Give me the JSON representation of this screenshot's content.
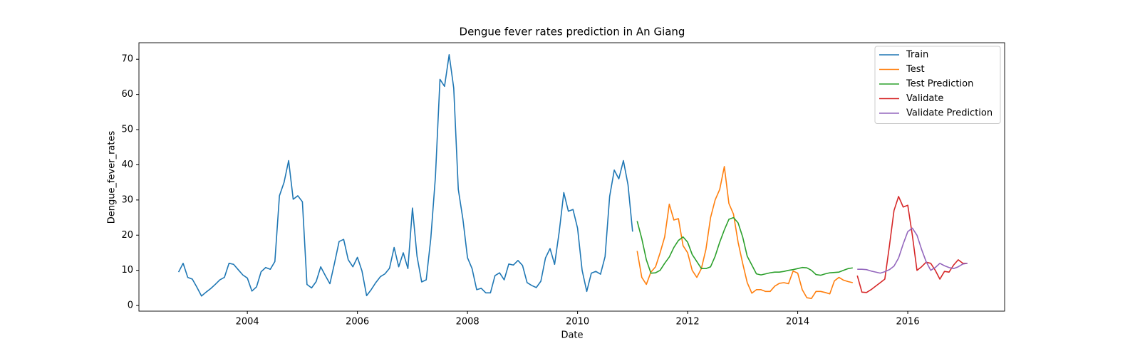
{
  "chart_data": {
    "type": "line",
    "title": "Dengue fever rates prediction in An Giang",
    "x_label": "Date",
    "y_label": "Dengue_fever_rates",
    "xlim": [
      2002.03,
      2017.76
    ],
    "xticks": [
      2004,
      2006,
      2008,
      2010,
      2012,
      2014,
      2016
    ],
    "ylim": [
      -1.6,
      74.7
    ],
    "yticks": [
      0,
      10,
      20,
      30,
      40,
      50,
      60,
      70
    ],
    "legend": "upper right",
    "series": [
      {
        "name": "Train",
        "color": "#1f77b4",
        "x": [
          2002.75,
          2002.833,
          2002.917,
          2003,
          2003.083,
          2003.167,
          2003.25,
          2003.333,
          2003.417,
          2003.5,
          2003.583,
          2003.667,
          2003.75,
          2003.833,
          2003.917,
          2004,
          2004.083,
          2004.167,
          2004.25,
          2004.333,
          2004.417,
          2004.5,
          2004.583,
          2004.667,
          2004.75,
          2004.833,
          2004.917,
          2005,
          2005.083,
          2005.167,
          2005.25,
          2005.333,
          2005.417,
          2005.5,
          2005.583,
          2005.667,
          2005.75,
          2005.833,
          2005.917,
          2006,
          2006.083,
          2006.167,
          2006.25,
          2006.333,
          2006.417,
          2006.5,
          2006.583,
          2006.667,
          2006.75,
          2006.833,
          2006.917,
          2007,
          2007.083,
          2007.167,
          2007.25,
          2007.333,
          2007.417,
          2007.5,
          2007.583,
          2007.667,
          2007.75,
          2007.833,
          2007.917,
          2008,
          2008.083,
          2008.167,
          2008.25,
          2008.333,
          2008.417,
          2008.5,
          2008.583,
          2008.667,
          2008.75,
          2008.833,
          2008.917,
          2009,
          2009.083,
          2009.167,
          2009.25,
          2009.333,
          2009.417,
          2009.5,
          2009.583,
          2009.667,
          2009.75,
          2009.833,
          2009.917,
          2010,
          2010.083,
          2010.167,
          2010.25,
          2010.333,
          2010.417,
          2010.5,
          2010.583,
          2010.667,
          2010.75,
          2010.833,
          2010.917,
          2011
        ],
        "values": [
          9.5,
          12,
          8,
          7.5,
          5.2,
          2.7,
          3.8,
          4.8,
          6,
          7.3,
          8,
          12,
          11.7,
          10.2,
          8.7,
          7.8,
          4.1,
          5.3,
          9.6,
          10.8,
          10.3,
          12.5,
          31.2,
          35,
          41.2,
          30.2,
          31.2,
          29.5,
          6,
          5,
          6.8,
          11,
          8.5,
          6.2,
          12,
          18.2,
          18.8,
          13,
          11,
          13.7,
          9.8,
          2.8,
          4.5,
          6.5,
          8.2,
          9,
          10.6,
          16.5,
          11,
          15,
          10.5,
          27.7,
          14,
          6.7,
          7.3,
          19,
          36.5,
          64.3,
          62.3,
          71.3,
          61.8,
          33,
          24.5,
          13.6,
          10.5,
          4.5,
          4.9,
          3.6,
          3.6,
          8.5,
          9.3,
          7.3,
          11.8,
          11.5,
          12.8,
          11.4,
          6.5,
          5.7,
          5.1,
          6.9,
          13.5,
          16.2,
          11.7,
          21,
          32.1,
          26.8,
          27.3,
          22,
          10,
          4,
          9.2,
          9.7,
          8.9,
          13.9,
          31,
          38.5,
          36,
          41.2,
          34.3,
          21
        ]
      },
      {
        "name": "Test",
        "color": "#ff7f0e",
        "x": [
          2011.083,
          2011.167,
          2011.25,
          2011.333,
          2011.417,
          2011.5,
          2011.583,
          2011.667,
          2011.75,
          2011.833,
          2011.917,
          2012,
          2012.083,
          2012.167,
          2012.25,
          2012.333,
          2012.417,
          2012.5,
          2012.583,
          2012.667,
          2012.75,
          2012.833,
          2012.917,
          2013,
          2013.083,
          2013.167,
          2013.25,
          2013.333,
          2013.417,
          2013.5,
          2013.583,
          2013.667,
          2013.75,
          2013.833,
          2013.917,
          2014,
          2014.083,
          2014.167,
          2014.25,
          2014.333,
          2014.417,
          2014.5,
          2014.583,
          2014.667,
          2014.75,
          2014.833,
          2014.917,
          2015
        ],
        "values": [
          15.5,
          8,
          6,
          9.5,
          11,
          15,
          19.5,
          28.8,
          24.3,
          24.7,
          17,
          15,
          10,
          8,
          10.5,
          16,
          25,
          30,
          33,
          39.5,
          29,
          26,
          18,
          12,
          6.5,
          3.5,
          4.5,
          4.5,
          4,
          4,
          5.5,
          6.3,
          6.5,
          6.2,
          9.8,
          9.2,
          4.5,
          2.2,
          2,
          4,
          4,
          3.7,
          3.3,
          7,
          8,
          7.2,
          6.8,
          6.5
        ]
      },
      {
        "name": "Test Prediction",
        "color": "#2ca02c",
        "x": [
          2011.083,
          2011.167,
          2011.25,
          2011.333,
          2011.417,
          2011.5,
          2011.583,
          2011.667,
          2011.75,
          2011.833,
          2011.917,
          2012,
          2012.083,
          2012.167,
          2012.25,
          2012.333,
          2012.417,
          2012.5,
          2012.583,
          2012.667,
          2012.75,
          2012.833,
          2012.917,
          2013,
          2013.083,
          2013.167,
          2013.25,
          2013.333,
          2013.417,
          2013.5,
          2013.583,
          2013.667,
          2013.75,
          2013.833,
          2013.917,
          2014,
          2014.083,
          2014.167,
          2014.25,
          2014.333,
          2014.417,
          2014.5,
          2014.583,
          2014.667,
          2014.75,
          2014.833,
          2014.917,
          2015
        ],
        "values": [
          24,
          19,
          13,
          9.2,
          9.3,
          10,
          12,
          13.8,
          16.5,
          18.5,
          19.5,
          18,
          14.5,
          12.5,
          10.5,
          10.5,
          11,
          14,
          18,
          21.5,
          24.5,
          25,
          23.5,
          19.5,
          14,
          11.5,
          9,
          8.7,
          9,
          9.3,
          9.5,
          9.5,
          9.7,
          10,
          10.2,
          10.5,
          10.8,
          10.7,
          10,
          8.8,
          8.6,
          9,
          9.3,
          9.4,
          9.5,
          10,
          10.5,
          10.7
        ]
      },
      {
        "name": "Validate",
        "color": "#d62728",
        "x": [
          2015.083,
          2015.167,
          2015.25,
          2015.333,
          2015.417,
          2015.5,
          2015.583,
          2015.667,
          2015.75,
          2015.833,
          2015.917,
          2016,
          2016.083,
          2016.167,
          2016.25,
          2016.333,
          2016.417,
          2016.5,
          2016.583,
          2016.667,
          2016.75,
          2016.833,
          2016.917,
          2017,
          2017.083
        ],
        "values": [
          8.5,
          3.8,
          3.7,
          4.5,
          5.5,
          6.5,
          7.5,
          17,
          27,
          31,
          28,
          28.5,
          20,
          10,
          11,
          12.3,
          12,
          10,
          7.5,
          9.7,
          9.5,
          11.5,
          13,
          12,
          12
        ]
      },
      {
        "name": "Validate Prediction",
        "color": "#9467bd",
        "x": [
          2015.083,
          2015.167,
          2015.25,
          2015.333,
          2015.417,
          2015.5,
          2015.583,
          2015.667,
          2015.75,
          2015.833,
          2015.917,
          2016,
          2016.083,
          2016.167,
          2016.25,
          2016.333,
          2016.417,
          2016.5,
          2016.583,
          2016.667,
          2016.75,
          2016.833,
          2016.917,
          2017,
          2017.083
        ],
        "values": [
          10.3,
          10.3,
          10.2,
          9.8,
          9.5,
          9.2,
          9.6,
          10.2,
          11.2,
          13.5,
          17.5,
          21,
          22,
          20,
          16,
          12.5,
          10,
          10.8,
          12,
          11.3,
          10.8,
          10.5,
          11,
          11.8,
          12
        ]
      }
    ]
  }
}
